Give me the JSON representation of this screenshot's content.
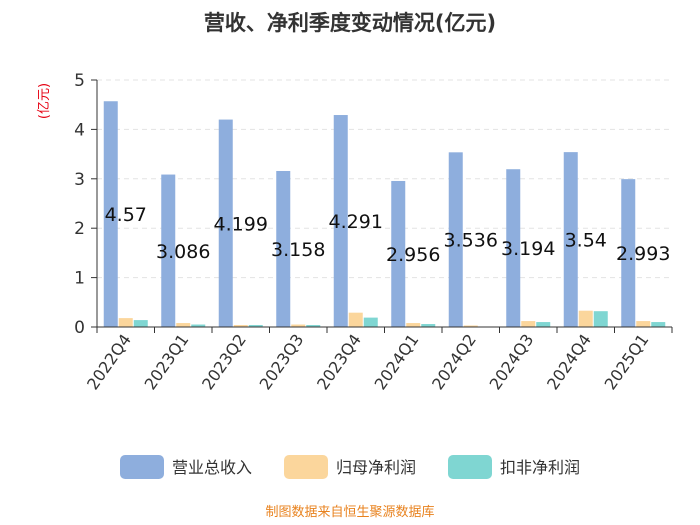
{
  "chart_data": {
    "type": "bar",
    "title": "营收、净利季度变动情况(亿元)",
    "unit_label": "(亿元)",
    "categories": [
      "2022Q4",
      "2023Q1",
      "2023Q2",
      "2023Q3",
      "2023Q4",
      "2024Q1",
      "2024Q2",
      "2024Q3",
      "2024Q4",
      "2025Q1"
    ],
    "series": [
      {
        "name": "营业总收入",
        "color": "#8eaedd",
        "values": [
          4.57,
          3.086,
          4.199,
          3.158,
          4.291,
          2.956,
          3.536,
          3.194,
          3.54,
          2.993
        ],
        "labels": [
          "4.57",
          "3.086",
          "4.199",
          "3.158",
          "4.291",
          "2.956",
          "3.536",
          "3.194",
          "3.54",
          "2.993"
        ]
      },
      {
        "name": "归母净利润",
        "color": "#fbd69c",
        "values": [
          0.18,
          0.08,
          0.04,
          0.05,
          0.29,
          0.08,
          0.03,
          0.12,
          0.33,
          0.12
        ]
      },
      {
        "name": "扣非净利润",
        "color": "#7fd6d2",
        "values": [
          0.14,
          0.05,
          0.04,
          0.04,
          0.19,
          0.06,
          0.01,
          0.1,
          0.32,
          0.1
        ]
      }
    ],
    "ylim": [
      0,
      5
    ],
    "yticks": [
      "0",
      "1",
      "2",
      "3",
      "4",
      "5"
    ],
    "grid": true,
    "legend_position": "bottom"
  },
  "source": "制图数据来自恒生聚源数据库"
}
